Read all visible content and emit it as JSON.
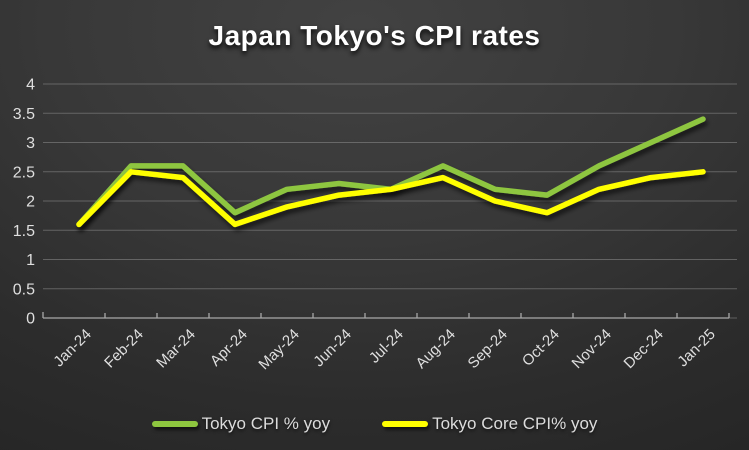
{
  "chart_data": {
    "type": "line",
    "title": "Japan Tokyo's CPI rates",
    "categories": [
      "Jan-24",
      "Feb-24",
      "Mar-24",
      "Apr-24",
      "May-24",
      "Jun-24",
      "Jul-24",
      "Aug-24",
      "Sep-24",
      "Oct-24",
      "Nov-24",
      "Dec-24",
      "Jan-25"
    ],
    "series": [
      {
        "name": "Tokyo CPI % yoy",
        "color": "#8EC63F",
        "values": [
          1.6,
          2.6,
          2.6,
          1.8,
          2.2,
          2.3,
          2.2,
          2.6,
          2.2,
          2.1,
          2.6,
          3.0,
          3.4
        ]
      },
      {
        "name": "Tokyo Core CPI% yoy",
        "color": "#FFFF00",
        "values": [
          1.6,
          2.5,
          2.4,
          1.6,
          1.9,
          2.1,
          2.2,
          2.4,
          2.0,
          1.8,
          2.2,
          2.4,
          2.5
        ]
      }
    ],
    "xlabel": "",
    "ylabel": "",
    "ylim": [
      0,
      4
    ],
    "ytick_step": 0.5,
    "ytick_labels": [
      "0",
      "0.5",
      "1",
      "1.5",
      "2",
      "2.5",
      "3",
      "3.5",
      "4"
    ],
    "grid": true,
    "legend_position": "bottom",
    "axis_color": "#A8A8A8",
    "gridline_color": "#8C8C8C",
    "tick_label_color": "#DFDFDF"
  }
}
